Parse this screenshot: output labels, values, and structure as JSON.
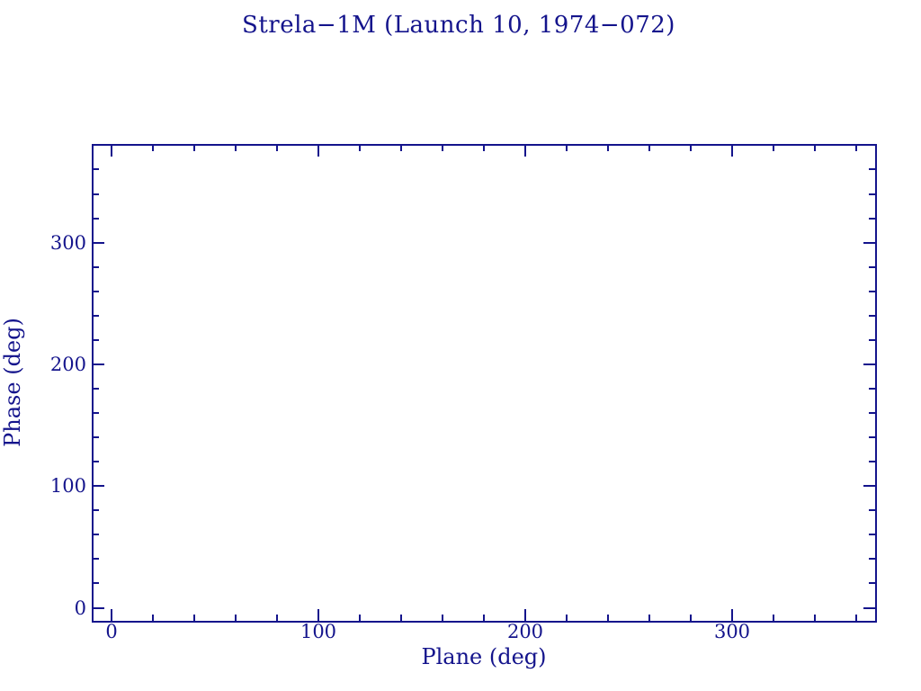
{
  "window": {
    "background_color": "#FFFFFF",
    "ink_color": "#14148C"
  },
  "chart_data": {
    "type": "scatter",
    "title": "Strela−1M (Launch 10, 1974−072)",
    "xlabel": "Plane (deg)",
    "ylabel": "Phase (deg)",
    "xlim": [
      -9.3,
      369.3
    ],
    "ylim": [
      -10.7,
      380.3
    ],
    "x_major_ticks": {
      "values": [
        0,
        100,
        200,
        300
      ],
      "labels": [
        "0",
        "100",
        "200",
        "300"
      ]
    },
    "y_major_ticks": {
      "values": [
        0,
        100,
        200,
        300
      ],
      "labels": [
        "0",
        "100",
        "200",
        "300"
      ]
    },
    "x_minor_ticks": [
      20,
      40,
      60,
      80,
      120,
      140,
      160,
      180,
      220,
      240,
      260,
      280,
      320,
      340,
      360
    ],
    "y_minor_ticks": [
      20,
      40,
      60,
      80,
      120,
      140,
      160,
      180,
      220,
      240,
      260,
      280,
      320,
      340,
      360
    ],
    "grid": false,
    "legend": null,
    "frame_sides_ticked": [
      "bottom",
      "top",
      "left",
      "right"
    ],
    "series": [],
    "points": []
  }
}
